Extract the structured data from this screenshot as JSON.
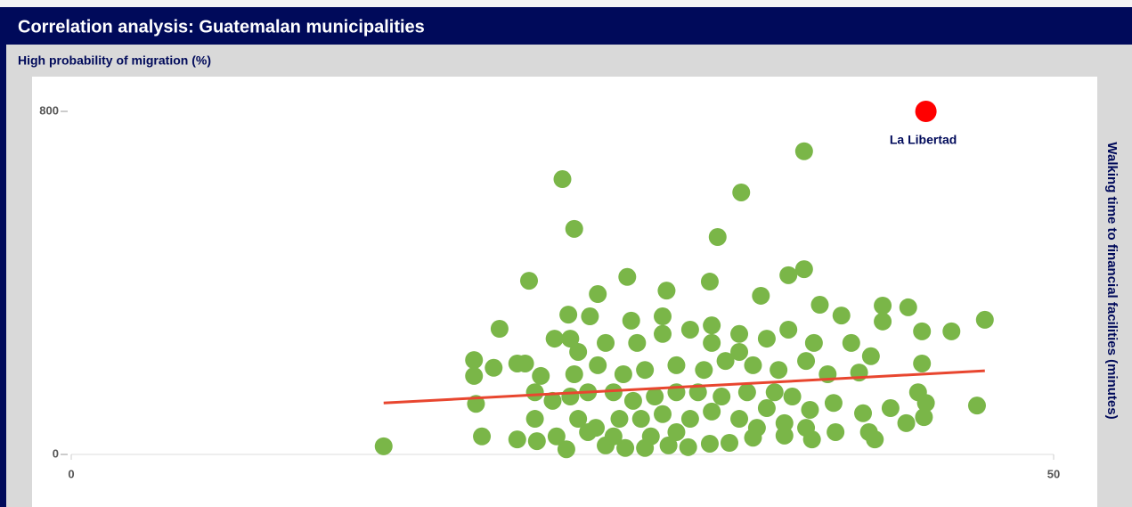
{
  "header": {
    "title": "Correlation analysis: Guatemalan municipalities"
  },
  "chart_data": {
    "type": "scatter",
    "y_label": "High probability of migration (%)",
    "x_label": "Walking time to financial facilities (minutes)",
    "xlim": [
      0,
      50
    ],
    "xticks": [
      0,
      50
    ],
    "ylim": [
      0,
      800
    ],
    "yticks": [
      0,
      800
    ],
    "points": {
      "color": "#7ab648",
      "x": [
        15.9,
        25.0,
        25.6,
        37.3,
        34.1,
        32.9,
        23.3,
        28.3,
        32.5,
        30.3,
        37.3,
        36.5,
        35.1,
        26.8,
        25.3,
        26.4,
        21.8,
        46.5,
        44.8,
        42.6,
        41.3,
        41.3,
        39.2,
        38.1,
        43.3,
        43.3,
        46.1,
        43.5,
        43.1,
        41.7,
        42.5,
        43.4,
        40.3,
        40.6,
        40.9,
        40.7,
        39.7,
        40.1,
        20.5,
        20.5,
        21.5,
        20.6,
        20.9,
        22.7,
        23.1,
        23.9,
        23.6,
        24.6,
        22.7,
        23.7,
        25.2,
        27.2,
        28.2,
        29.2,
        30.4,
        31.4,
        32.5,
        33.5,
        34.7,
        36.3,
        37.7,
        38.9,
        37.6,
        38.8,
        36.7,
        35.4,
        34.0,
        32.6,
        31.5,
        30.1,
        29.0,
        27.9,
        26.7,
        25.8,
        25.4,
        26.3,
        27.6,
        28.6,
        29.7,
        30.8,
        31.9,
        33.1,
        34.4,
        35.8,
        25.6,
        26.8,
        28.1,
        29.2,
        30.8,
        32.2,
        33.3,
        34.7,
        36.0,
        37.4,
        38.5,
        25.8,
        27.2,
        28.8,
        30.1,
        31.5,
        32.6,
        34.0,
        35.4,
        36.5,
        37.8,
        28.5,
        30.1,
        32.6,
        34.0,
        25.4,
        24.5,
        29.5,
        30.8,
        27.6,
        26.3,
        34.9,
        36.3,
        37.4,
        23.6,
        24.7
      ],
      "y": [
        19,
        642,
        526,
        707,
        611,
        507,
        405,
        414,
        403,
        382,
        432,
        418,
        370,
        374,
        326,
        322,
        293,
        314,
        287,
        343,
        347,
        310,
        324,
        349,
        287,
        212,
        114,
        120,
        145,
        108,
        73,
        87,
        96,
        52,
        35,
        229,
        260,
        191,
        220,
        183,
        202,
        118,
        42,
        212,
        212,
        183,
        145,
        270,
        35,
        31,
        12,
        21,
        15,
        15,
        21,
        17,
        25,
        27,
        39,
        44,
        35,
        52,
        104,
        120,
        135,
        108,
        83,
        100,
        83,
        94,
        83,
        83,
        62,
        83,
        135,
        145,
        145,
        125,
        135,
        145,
        145,
        135,
        145,
        145,
        187,
        208,
        187,
        197,
        208,
        197,
        218,
        208,
        197,
        218,
        187,
        239,
        260,
        260,
        281,
        291,
        260,
        281,
        270,
        291,
        260,
        312,
        322,
        301,
        239,
        270,
        125,
        42,
        52,
        42,
        52,
        62,
        73,
        62,
        83,
        42
      ]
    },
    "highlight": {
      "label": "La Libertad",
      "x": 43.5,
      "y": 800,
      "color": "#ff0000"
    },
    "trendline": {
      "x": [
        15.9,
        46.5
      ],
      "y": [
        120,
        195
      ],
      "color": "#e8462f"
    }
  }
}
